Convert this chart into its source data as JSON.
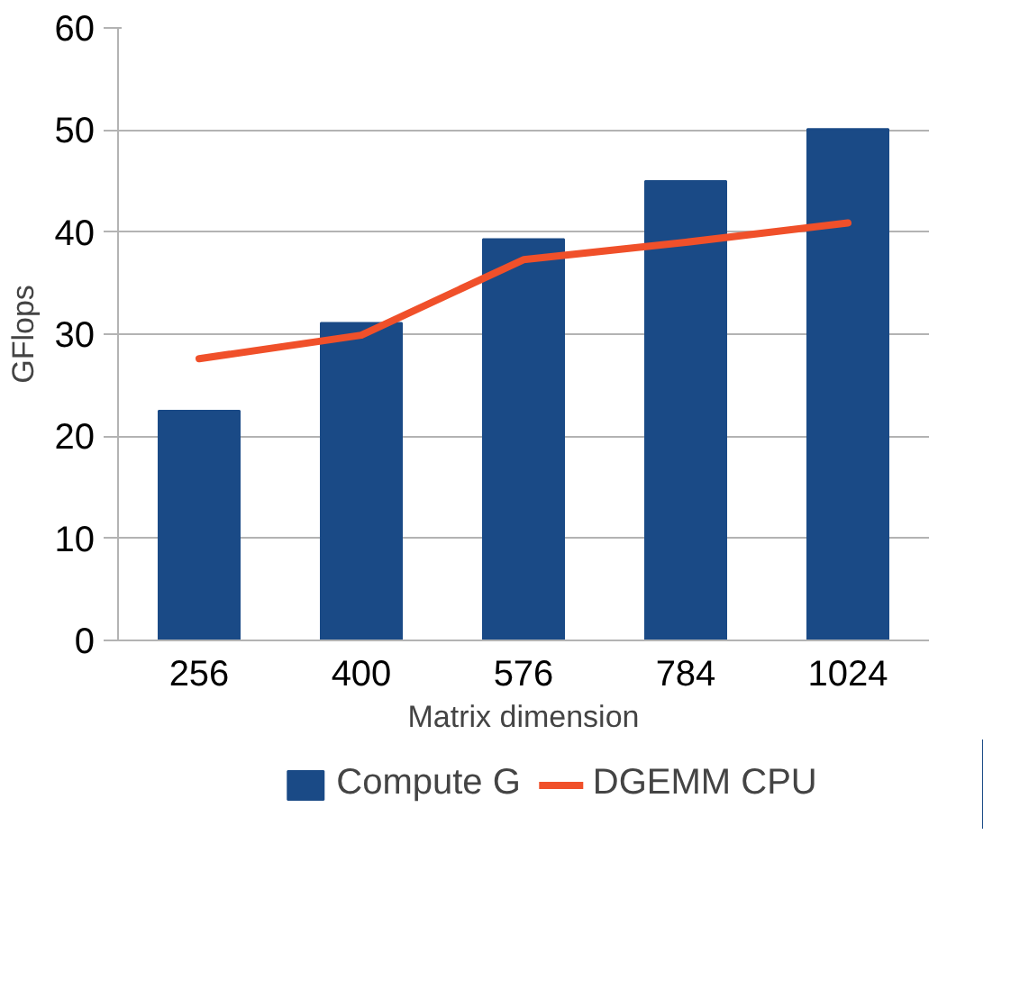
{
  "chart_data": {
    "type": "bar",
    "xlabel": "Matrix dimension",
    "ylabel": "GFlops",
    "categories": [
      "256",
      "400",
      "576",
      "784",
      "1024"
    ],
    "series": [
      {
        "name": "Compute G",
        "color": "#1a4a86",
        "values": [
          22.5,
          31.1,
          39.3,
          45.0,
          50.1
        ]
      },
      {
        "name": "DGEMM CPU",
        "type": "line",
        "color": "#f0502a",
        "values": [
          27.6,
          29.9,
          37.3,
          39.0,
          40.9
        ]
      }
    ],
    "ylim": [
      0,
      60
    ],
    "yticks": [
      0,
      10,
      20,
      30,
      40,
      50,
      60
    ],
    "grid": "y",
    "legend": "bottom"
  }
}
